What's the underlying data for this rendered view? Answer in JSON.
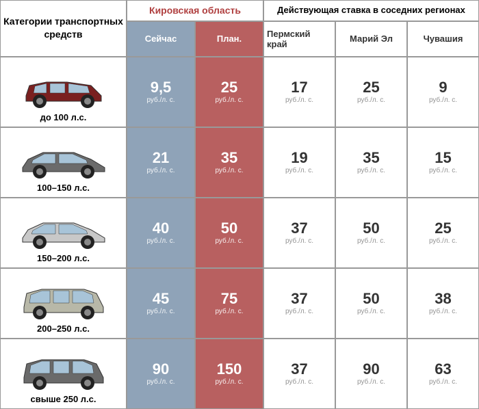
{
  "headers": {
    "categories": "Категории транспортных средств",
    "kirov": "Кировская область",
    "neighbors": "Действующая ставка в соседних регионах",
    "now": "Сейчас",
    "plan": "План.",
    "perm": "Пермский край",
    "mari": "Марий Эл",
    "chuv": "Чувашия"
  },
  "unit": "руб./л. с.",
  "rows": [
    {
      "label": "до 100 л.с.",
      "carColor": "#7a2020",
      "carType": "hatch",
      "now": "9,5",
      "plan": "25",
      "perm": "17",
      "mari": "25",
      "chuv": "9"
    },
    {
      "label": "100–150 л.с.",
      "carColor": "#6b6b6b",
      "carType": "sedan",
      "now": "21",
      "plan": "35",
      "perm": "19",
      "mari": "35",
      "chuv": "15"
    },
    {
      "label": "150–200 л.с.",
      "carColor": "#c8c8c8",
      "carType": "sedan",
      "now": "40",
      "plan": "50",
      "perm": "37",
      "mari": "50",
      "chuv": "25"
    },
    {
      "label": "200–250 л.с.",
      "carColor": "#b8b8a8",
      "carType": "suv",
      "now": "45",
      "plan": "75",
      "perm": "37",
      "mari": "50",
      "chuv": "38"
    },
    {
      "label": "свыше 250 л.с.",
      "carColor": "#6a6a6a",
      "carType": "suv",
      "now": "90",
      "plan": "150",
      "perm": "37",
      "mari": "90",
      "chuv": "63"
    }
  ],
  "colors": {
    "nowBg": "#8fa3b8",
    "planBg": "#b86060",
    "kirovText": "#b04040"
  }
}
